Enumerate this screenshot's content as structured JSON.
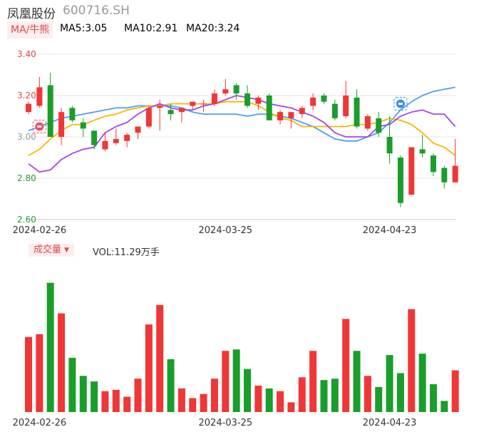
{
  "header": {
    "name": "凤凰股份",
    "code": "600716.SH",
    "ma_label": "MA/牛熊",
    "ma5": "MA5:3.05",
    "ma10": "MA10:2.91",
    "ma20": "MA20:3.24"
  },
  "volume": {
    "label": "成交量",
    "value_text": "VOL:11.29万手"
  },
  "colors": {
    "up": "#f03636",
    "down": "#1a9e2a",
    "ma5": "#a445e8",
    "ma10": "#f5b800",
    "ma20": "#4f9ef0",
    "grid": "#e6e6e6"
  },
  "icons": [
    "bear-badge-icon",
    "bull-badge-icon"
  ],
  "chart_data": [
    {
      "type": "candlestick",
      "y_ticks": [
        "3.40",
        "3.20",
        "3.00",
        "2.80",
        "2.60"
      ],
      "ylim": [
        2.6,
        3.4
      ],
      "x_labels": [
        "2024-02-26",
        "2024-03-25",
        "2024-04-23"
      ],
      "x_label_index": [
        1,
        18,
        33
      ],
      "candles": [
        {
          "o": 3.12,
          "h": 3.17,
          "l": 3.11,
          "c": 3.16
        },
        {
          "o": 3.15,
          "h": 3.29,
          "l": 3.14,
          "c": 3.24
        },
        {
          "o": 3.25,
          "h": 3.31,
          "l": 3.0,
          "c": 3.0
        },
        {
          "o": 3.0,
          "h": 3.14,
          "l": 2.96,
          "c": 3.12
        },
        {
          "o": 3.14,
          "h": 3.15,
          "l": 3.07,
          "c": 3.08
        },
        {
          "o": 3.07,
          "h": 3.09,
          "l": 3.0,
          "c": 3.04
        },
        {
          "o": 3.03,
          "h": 3.03,
          "l": 2.94,
          "c": 2.96
        },
        {
          "o": 2.94,
          "h": 3.02,
          "l": 2.93,
          "c": 2.98
        },
        {
          "o": 2.97,
          "h": 3.04,
          "l": 2.96,
          "c": 2.99
        },
        {
          "o": 2.98,
          "h": 3.02,
          "l": 2.95,
          "c": 3.01
        },
        {
          "o": 3.02,
          "h": 3.05,
          "l": 2.99,
          "c": 3.05
        },
        {
          "o": 3.05,
          "h": 3.15,
          "l": 3.04,
          "c": 3.14
        },
        {
          "o": 3.14,
          "h": 3.18,
          "l": 3.03,
          "c": 3.15
        },
        {
          "o": 3.13,
          "h": 3.16,
          "l": 3.08,
          "c": 3.11
        },
        {
          "o": 3.12,
          "h": 3.14,
          "l": 3.07,
          "c": 3.14
        },
        {
          "o": 3.15,
          "h": 3.17,
          "l": 3.13,
          "c": 3.17
        },
        {
          "o": 3.16,
          "h": 3.18,
          "l": 3.12,
          "c": 3.16
        },
        {
          "o": 3.16,
          "h": 3.23,
          "l": 3.15,
          "c": 3.21
        },
        {
          "o": 3.21,
          "h": 3.28,
          "l": 3.2,
          "c": 3.23
        },
        {
          "o": 3.25,
          "h": 3.26,
          "l": 3.18,
          "c": 3.21
        },
        {
          "o": 3.21,
          "h": 3.25,
          "l": 3.14,
          "c": 3.15
        },
        {
          "o": 3.16,
          "h": 3.2,
          "l": 3.13,
          "c": 3.19
        },
        {
          "o": 3.2,
          "h": 3.21,
          "l": 3.08,
          "c": 3.08
        },
        {
          "o": 3.08,
          "h": 3.13,
          "l": 3.06,
          "c": 3.12
        },
        {
          "o": 3.09,
          "h": 3.12,
          "l": 3.04,
          "c": 3.12
        },
        {
          "o": 3.11,
          "h": 3.15,
          "l": 3.09,
          "c": 3.14
        },
        {
          "o": 3.15,
          "h": 3.21,
          "l": 3.13,
          "c": 3.19
        },
        {
          "o": 3.2,
          "h": 3.21,
          "l": 3.16,
          "c": 3.17
        },
        {
          "o": 3.16,
          "h": 3.18,
          "l": 3.08,
          "c": 3.09
        },
        {
          "o": 3.1,
          "h": 3.27,
          "l": 3.09,
          "c": 3.2
        },
        {
          "o": 3.19,
          "h": 3.23,
          "l": 3.04,
          "c": 3.05
        },
        {
          "o": 3.04,
          "h": 3.11,
          "l": 3.03,
          "c": 3.1
        },
        {
          "o": 3.09,
          "h": 3.12,
          "l": 3.0,
          "c": 3.02
        },
        {
          "o": 3.0,
          "h": 3.1,
          "l": 2.87,
          "c": 2.92
        },
        {
          "o": 2.9,
          "h": 2.91,
          "l": 2.66,
          "c": 2.68
        },
        {
          "o": 2.72,
          "h": 2.95,
          "l": 2.72,
          "c": 2.95
        },
        {
          "o": 2.94,
          "h": 3.01,
          "l": 2.9,
          "c": 2.92
        },
        {
          "o": 2.91,
          "h": 2.92,
          "l": 2.81,
          "c": 2.83
        },
        {
          "o": 2.85,
          "h": 2.86,
          "l": 2.75,
          "c": 2.78
        },
        {
          "o": 2.78,
          "h": 2.99,
          "l": 2.78,
          "c": 2.86
        }
      ],
      "ma5": [
        2.87,
        2.83,
        2.84,
        2.89,
        2.92,
        2.94,
        2.95,
        3.02,
        3.05,
        3.07,
        3.11,
        3.14,
        3.16,
        3.14,
        3.13,
        3.13,
        3.15,
        3.16,
        3.18,
        3.2,
        3.19,
        3.18,
        3.16,
        3.15,
        3.14,
        3.12,
        3.1,
        3.07,
        3.02,
        3.0,
        3.0,
        3.0,
        3.05,
        3.06,
        3.1,
        3.12,
        3.13,
        3.11,
        3.11,
        3.05
      ],
      "ma10": [
        2.91,
        2.94,
        2.99,
        3.03,
        3.06,
        3.06,
        3.08,
        3.1,
        3.11,
        3.13,
        3.14,
        3.15,
        3.15,
        3.16,
        3.16,
        3.16,
        3.16,
        3.16,
        3.17,
        3.17,
        3.17,
        3.15,
        3.12,
        3.09,
        3.08,
        3.05,
        3.05,
        3.05,
        3.05,
        3.05,
        3.06,
        3.06,
        3.07,
        3.09,
        3.08,
        3.06,
        3.02,
        2.97,
        2.95,
        2.91
      ],
      "ma20": [
        3.03,
        3.05,
        3.07,
        3.09,
        3.1,
        3.11,
        3.12,
        3.13,
        3.14,
        3.14,
        3.15,
        3.15,
        3.15,
        3.15,
        3.14,
        3.12,
        3.11,
        3.11,
        3.11,
        3.11,
        3.1,
        3.11,
        3.11,
        3.1,
        3.09,
        3.07,
        3.05,
        3.02,
        2.99,
        2.98,
        2.98,
        3.0,
        3.02,
        3.07,
        3.13,
        3.17,
        3.2,
        3.22,
        3.23,
        3.24
      ],
      "markers": [
        {
          "index": 1,
          "price": 3.05,
          "icon": "bear-badge-icon"
        },
        {
          "index": 34,
          "price": 3.16,
          "icon": "bull-badge-icon"
        }
      ]
    },
    {
      "type": "bar",
      "series_name": "成交量",
      "values": [
        0.54,
        0.56,
        0.93,
        0.71,
        0.39,
        0.26,
        0.22,
        0.15,
        0.16,
        0.11,
        0.24,
        0.63,
        0.77,
        0.38,
        0.17,
        0.1,
        0.13,
        0.24,
        0.44,
        0.45,
        0.31,
        0.19,
        0.17,
        0.15,
        0.07,
        0.25,
        0.44,
        0.23,
        0.24,
        0.67,
        0.44,
        0.26,
        0.18,
        0.41,
        0.28,
        0.74,
        0.42,
        0.2,
        0.08,
        0.3
      ]
    }
  ]
}
